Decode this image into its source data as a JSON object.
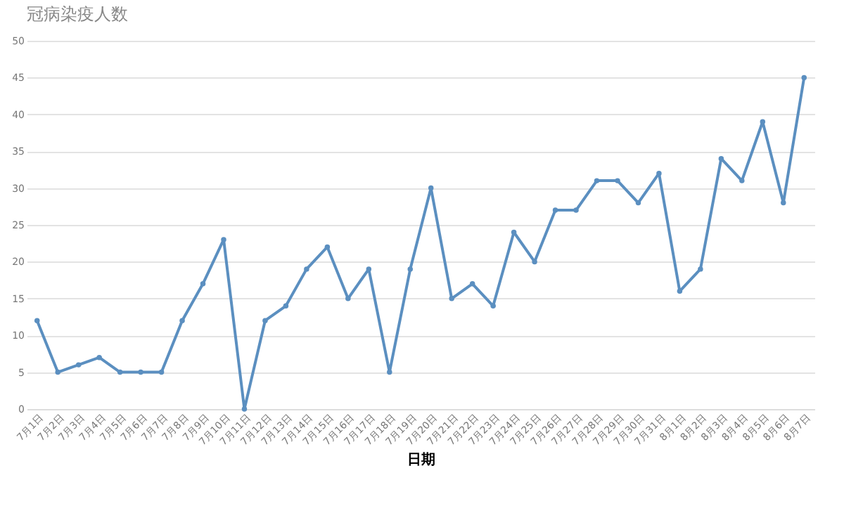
{
  "chart_data": {
    "type": "line",
    "title": "冠病染疫人数",
    "xlabel": "日期",
    "categories": [
      "7月1日",
      "7月2日",
      "7月3日",
      "7月4日",
      "7月5日",
      "7月6日",
      "7月7日",
      "7月8日",
      "7月9日",
      "7月10日",
      "7月11日",
      "7月12日",
      "7月13日",
      "7月14日",
      "7月15日",
      "7月16日",
      "7月17日",
      "7月18日",
      "7月19日",
      "7月20日",
      "7月21日",
      "7月22日",
      "7月23日",
      "7月24日",
      "7月25日",
      "7月26日",
      "7月27日",
      "7月28日",
      "7月29日",
      "7月30日",
      "7月31日",
      "8月1日",
      "8月2日",
      "8月3日",
      "8月4日",
      "8月5日",
      "8月6日",
      "8月7日"
    ],
    "series": [
      {
        "color": "#5b8fc0",
        "values": [
          12,
          5,
          6,
          7,
          5,
          5,
          5,
          12,
          17,
          23,
          0,
          12,
          14,
          19,
          22,
          15,
          19,
          5,
          19,
          30,
          15,
          17,
          14,
          24,
          20,
          27,
          27,
          31,
          31,
          28,
          32,
          16,
          19,
          34,
          31,
          39,
          28,
          45
        ]
      }
    ],
    "ylim": [
      0,
      50
    ],
    "yticks": [
      0,
      5,
      10,
      15,
      20,
      25,
      30,
      35,
      40,
      45,
      50
    ],
    "grid": "y",
    "marker": "circle",
    "line_style": "solid",
    "legend": false
  }
}
